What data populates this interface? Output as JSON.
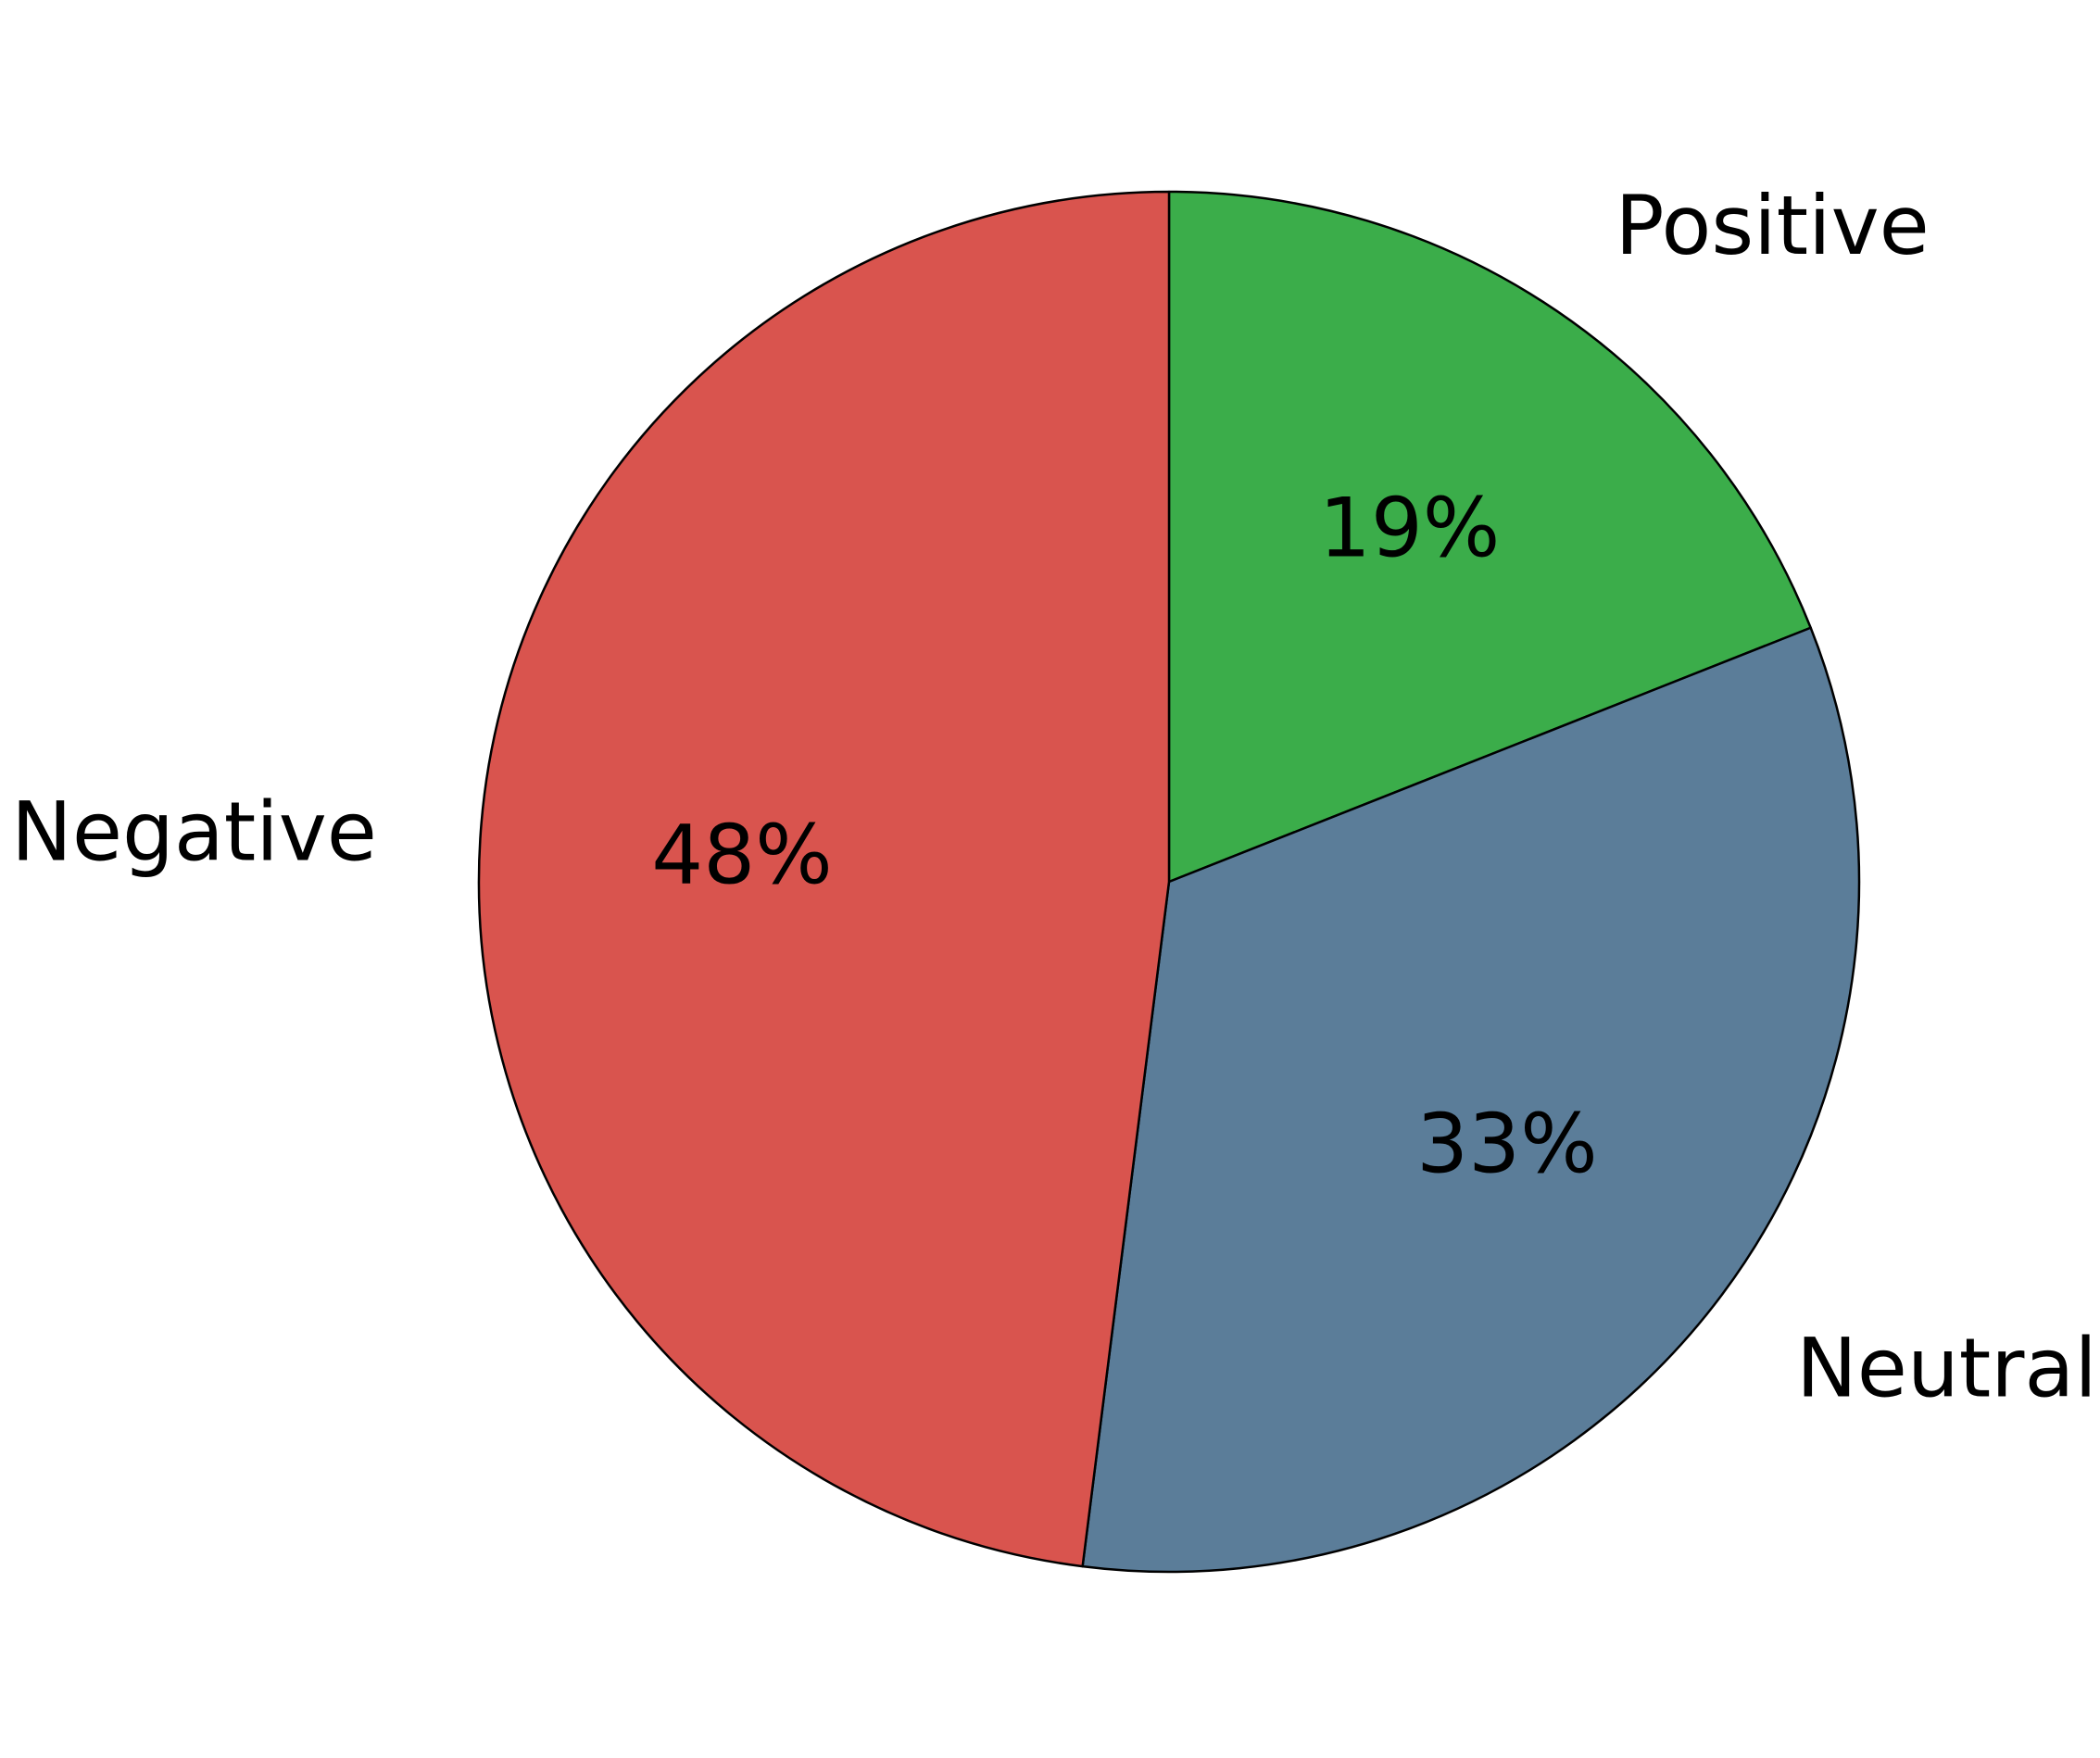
{
  "chart_data": {
    "type": "pie",
    "slices": [
      {
        "label": "Positive",
        "value": 19,
        "pct_label": "19%",
        "color": "#3bad4a"
      },
      {
        "label": "Neutral",
        "value": 33,
        "pct_label": "33%",
        "color": "#5b7d99"
      },
      {
        "label": "Negative",
        "value": 48,
        "pct_label": "48%",
        "color": "#d9544e"
      }
    ],
    "start_angle": "top",
    "direction": "clockwise",
    "title": "",
    "legend": "none"
  }
}
